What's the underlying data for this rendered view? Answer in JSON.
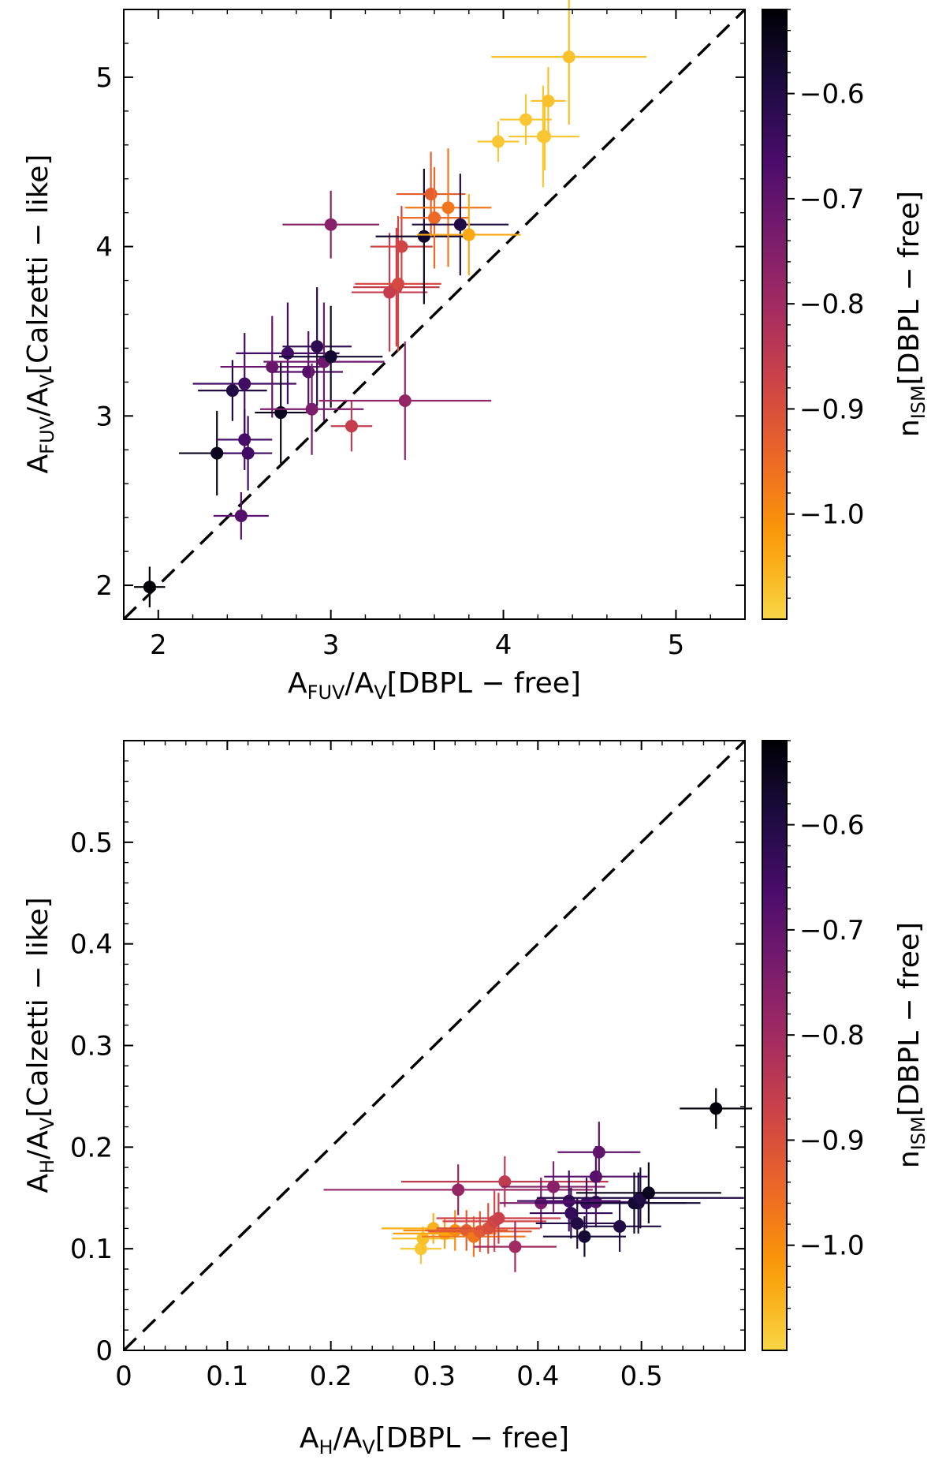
{
  "colormap": {
    "name": "inferno",
    "vmin": -1.1,
    "vmax": -0.52,
    "stops": [
      "#000004",
      "#1b0c41",
      "#4a0c6b",
      "#781c6d",
      "#a52c60",
      "#cf4446",
      "#ed6925",
      "#fb9b06",
      "#f7d13d",
      "#fcffa4"
    ]
  },
  "colorbar": {
    "ticks": [
      -0.6,
      -0.7,
      -0.8,
      -0.9,
      -1.0
    ],
    "tick_labels": [
      "−0.6",
      "−0.7",
      "−0.8",
      "−0.9",
      "−1.0"
    ],
    "label": {
      "main": "n",
      "sub": "ISM",
      "rest": "[DBPL − free]"
    }
  },
  "chart_data": [
    {
      "type": "scatter",
      "title": "",
      "xlabel": {
        "main": "A",
        "sub1": "FUV",
        "mid": "/A",
        "sub2": "V",
        "rest": "[DBPL − free]"
      },
      "ylabel": {
        "main": "A",
        "sub1": "FUV",
        "mid": "/A",
        "sub2": "V",
        "rest": "[Calzetti − like]"
      },
      "xlim": [
        1.8,
        5.4
      ],
      "ylim": [
        1.8,
        5.4
      ],
      "xticks": [
        2,
        3,
        4,
        5
      ],
      "xtick_labels": [
        "2",
        "3",
        "4",
        "5"
      ],
      "yticks": [
        2,
        3,
        4,
        5
      ],
      "ytick_labels": [
        "2",
        "3",
        "4",
        "5"
      ],
      "minor_step": 0.2,
      "diagonal": "y = x",
      "points": [
        {
          "x": 1.95,
          "y": 1.99,
          "xerr": 0.09,
          "yerr": 0.12,
          "c": -0.52
        },
        {
          "x": 2.34,
          "y": 2.78,
          "xerr": 0.22,
          "yerr": 0.25,
          "c": -0.55
        },
        {
          "x": 2.48,
          "y": 2.41,
          "xerr": 0.16,
          "yerr": 0.14,
          "c": -0.68
        },
        {
          "x": 2.5,
          "y": 2.86,
          "xerr": 0.16,
          "yerr": 0.18,
          "c": -0.66
        },
        {
          "x": 2.52,
          "y": 2.78,
          "xerr": 0.14,
          "yerr": 0.22,
          "c": -0.65
        },
        {
          "x": 2.43,
          "y": 3.15,
          "xerr": 0.2,
          "yerr": 0.18,
          "c": -0.6
        },
        {
          "x": 2.5,
          "y": 3.19,
          "xerr": 0.3,
          "yerr": 0.3,
          "c": -0.65
        },
        {
          "x": 2.66,
          "y": 3.29,
          "xerr": 0.3,
          "yerr": 0.3,
          "c": -0.71
        },
        {
          "x": 2.75,
          "y": 3.37,
          "xerr": 0.3,
          "yerr": 0.3,
          "c": -0.65
        },
        {
          "x": 2.71,
          "y": 3.02,
          "xerr": 0.15,
          "yerr": 0.3,
          "c": -0.55
        },
        {
          "x": 2.87,
          "y": 3.26,
          "xerr": 0.2,
          "yerr": 0.24,
          "c": -0.68
        },
        {
          "x": 2.89,
          "y": 3.04,
          "xerr": 0.3,
          "yerr": 0.27,
          "c": -0.74
        },
        {
          "x": 2.92,
          "y": 3.41,
          "xerr": 0.2,
          "yerr": 0.35,
          "c": -0.62
        },
        {
          "x": 2.96,
          "y": 3.32,
          "xerr": 0.35,
          "yerr": 0.35,
          "c": -0.72
        },
        {
          "x": 3.0,
          "y": 3.35,
          "xerr": 0.3,
          "yerr": 0.3,
          "c": -0.57
        },
        {
          "x": 3.0,
          "y": 4.13,
          "xerr": 0.28,
          "yerr": 0.2,
          "c": -0.76
        },
        {
          "x": 3.12,
          "y": 2.94,
          "xerr": 0.12,
          "yerr": 0.15,
          "c": -0.86
        },
        {
          "x": 3.43,
          "y": 3.09,
          "xerr": 0.5,
          "yerr": 0.35,
          "c": -0.78
        },
        {
          "x": 3.34,
          "y": 3.73,
          "xerr": 0.22,
          "yerr": 0.35,
          "c": -0.86
        },
        {
          "x": 3.38,
          "y": 3.76,
          "xerr": 0.25,
          "yerr": 0.35,
          "c": -0.86
        },
        {
          "x": 3.39,
          "y": 3.78,
          "xerr": 0.25,
          "yerr": 0.4,
          "c": -0.89
        },
        {
          "x": 3.41,
          "y": 4.0,
          "xerr": 0.18,
          "yerr": 0.24,
          "c": -0.88
        },
        {
          "x": 3.54,
          "y": 4.06,
          "xerr": 0.28,
          "yerr": 0.4,
          "c": -0.57
        },
        {
          "x": 3.58,
          "y": 4.31,
          "xerr": 0.2,
          "yerr": 0.25,
          "c": -0.93
        },
        {
          "x": 3.6,
          "y": 4.17,
          "xerr": 0.2,
          "yerr": 0.3,
          "c": -0.95
        },
        {
          "x": 3.68,
          "y": 4.23,
          "xerr": 0.25,
          "yerr": 0.35,
          "c": -0.97
        },
        {
          "x": 3.75,
          "y": 4.13,
          "xerr": 0.28,
          "yerr": 0.3,
          "c": -0.6
        },
        {
          "x": 3.8,
          "y": 4.07,
          "xerr": 0.3,
          "yerr": 0.24,
          "c": -1.04
        },
        {
          "x": 3.97,
          "y": 4.62,
          "xerr": 0.12,
          "yerr": 0.12,
          "c": -1.08
        },
        {
          "x": 4.13,
          "y": 4.75,
          "xerr": 0.15,
          "yerr": 0.15,
          "c": -1.08
        },
        {
          "x": 4.23,
          "y": 4.65,
          "xerr": 0.2,
          "yerr": 0.3,
          "c": -1.08
        },
        {
          "x": 4.24,
          "y": 4.65,
          "xerr": 0.2,
          "yerr": 0.2,
          "c": -1.08
        },
        {
          "x": 4.26,
          "y": 4.86,
          "xerr": 0.1,
          "yerr": 0.2,
          "c": -1.07
        },
        {
          "x": 4.38,
          "y": 5.12,
          "xerr": 0.45,
          "yerr": 0.4,
          "c": -1.07
        }
      ]
    },
    {
      "type": "scatter",
      "title": "",
      "xlabel": {
        "main": "A",
        "sub1": "H",
        "mid": "/A",
        "sub2": "V",
        "rest": "[DBPL − free]"
      },
      "ylabel": {
        "main": "A",
        "sub1": "H",
        "mid": "/A",
        "sub2": "V",
        "rest": "[Calzetti − like]"
      },
      "xlim": [
        0,
        0.6
      ],
      "ylim": [
        0,
        0.6
      ],
      "xticks": [
        0,
        0.1,
        0.2,
        0.3,
        0.4,
        0.5
      ],
      "xtick_labels": [
        "0",
        "0.1",
        "0.2",
        "0.3",
        "0.4",
        "0.5"
      ],
      "yticks": [
        0,
        0.1,
        0.2,
        0.3,
        0.4,
        0.5
      ],
      "ytick_labels": [
        "0",
        "0.1",
        "0.2",
        "0.3",
        "0.4",
        "0.5"
      ],
      "minor_step": 0.02,
      "diagonal": "y = x",
      "points": [
        {
          "x": 0.287,
          "y": 0.1,
          "xerr": 0.02,
          "yerr": 0.015,
          "c": -1.08
        },
        {
          "x": 0.289,
          "y": 0.11,
          "xerr": 0.03,
          "yerr": 0.012,
          "c": -1.07
        },
        {
          "x": 0.299,
          "y": 0.12,
          "xerr": 0.05,
          "yerr": 0.015,
          "c": -1.05
        },
        {
          "x": 0.31,
          "y": 0.115,
          "xerr": 0.05,
          "yerr": 0.015,
          "c": -1.03
        },
        {
          "x": 0.32,
          "y": 0.118,
          "xerr": 0.05,
          "yerr": 0.02,
          "c": -1.0
        },
        {
          "x": 0.323,
          "y": 0.158,
          "xerr": 0.13,
          "yerr": 0.025,
          "c": -0.78
        },
        {
          "x": 0.331,
          "y": 0.118,
          "xerr": 0.04,
          "yerr": 0.02,
          "c": -0.93
        },
        {
          "x": 0.338,
          "y": 0.112,
          "xerr": 0.05,
          "yerr": 0.02,
          "c": -0.97
        },
        {
          "x": 0.344,
          "y": 0.117,
          "xerr": 0.05,
          "yerr": 0.02,
          "c": -0.92
        },
        {
          "x": 0.352,
          "y": 0.12,
          "xerr": 0.05,
          "yerr": 0.025,
          "c": -0.9
        },
        {
          "x": 0.358,
          "y": 0.127,
          "xerr": 0.05,
          "yerr": 0.03,
          "c": -0.88
        },
        {
          "x": 0.362,
          "y": 0.13,
          "xerr": 0.06,
          "yerr": 0.025,
          "c": -0.87
        },
        {
          "x": 0.368,
          "y": 0.166,
          "xerr": 0.1,
          "yerr": 0.025,
          "c": -0.85
        },
        {
          "x": 0.378,
          "y": 0.102,
          "xerr": 0.04,
          "yerr": 0.025,
          "c": -0.8
        },
        {
          "x": 0.403,
          "y": 0.145,
          "xerr": 0.04,
          "yerr": 0.025,
          "c": -0.74
        },
        {
          "x": 0.415,
          "y": 0.161,
          "xerr": 0.05,
          "yerr": 0.025,
          "c": -0.76
        },
        {
          "x": 0.43,
          "y": 0.147,
          "xerr": 0.05,
          "yerr": 0.03,
          "c": -0.65
        },
        {
          "x": 0.432,
          "y": 0.135,
          "xerr": 0.04,
          "yerr": 0.025,
          "c": -0.63
        },
        {
          "x": 0.438,
          "y": 0.125,
          "xerr": 0.04,
          "yerr": 0.025,
          "c": -0.6
        },
        {
          "x": 0.445,
          "y": 0.112,
          "xerr": 0.04,
          "yerr": 0.02,
          "c": -0.58
        },
        {
          "x": 0.447,
          "y": 0.145,
          "xerr": 0.05,
          "yerr": 0.025,
          "c": -0.65
        },
        {
          "x": 0.456,
          "y": 0.146,
          "xerr": 0.05,
          "yerr": 0.025,
          "c": -0.68
        },
        {
          "x": 0.456,
          "y": 0.171,
          "xerr": 0.05,
          "yerr": 0.03,
          "c": -0.68
        },
        {
          "x": 0.459,
          "y": 0.195,
          "xerr": 0.04,
          "yerr": 0.03,
          "c": -0.7
        },
        {
          "x": 0.479,
          "y": 0.122,
          "xerr": 0.04,
          "yerr": 0.025,
          "c": -0.6
        },
        {
          "x": 0.493,
          "y": 0.145,
          "xerr": 0.05,
          "yerr": 0.03,
          "c": -0.57
        },
        {
          "x": 0.497,
          "y": 0.145,
          "xerr": 0.06,
          "yerr": 0.03,
          "c": -0.58
        },
        {
          "x": 0.499,
          "y": 0.15,
          "xerr": 0.1,
          "yerr": 0.03,
          "c": -0.6
        },
        {
          "x": 0.507,
          "y": 0.155,
          "xerr": 0.07,
          "yerr": 0.03,
          "c": -0.55
        },
        {
          "x": 0.572,
          "y": 0.238,
          "xerr": 0.035,
          "yerr": 0.02,
          "c": -0.53
        }
      ]
    }
  ]
}
